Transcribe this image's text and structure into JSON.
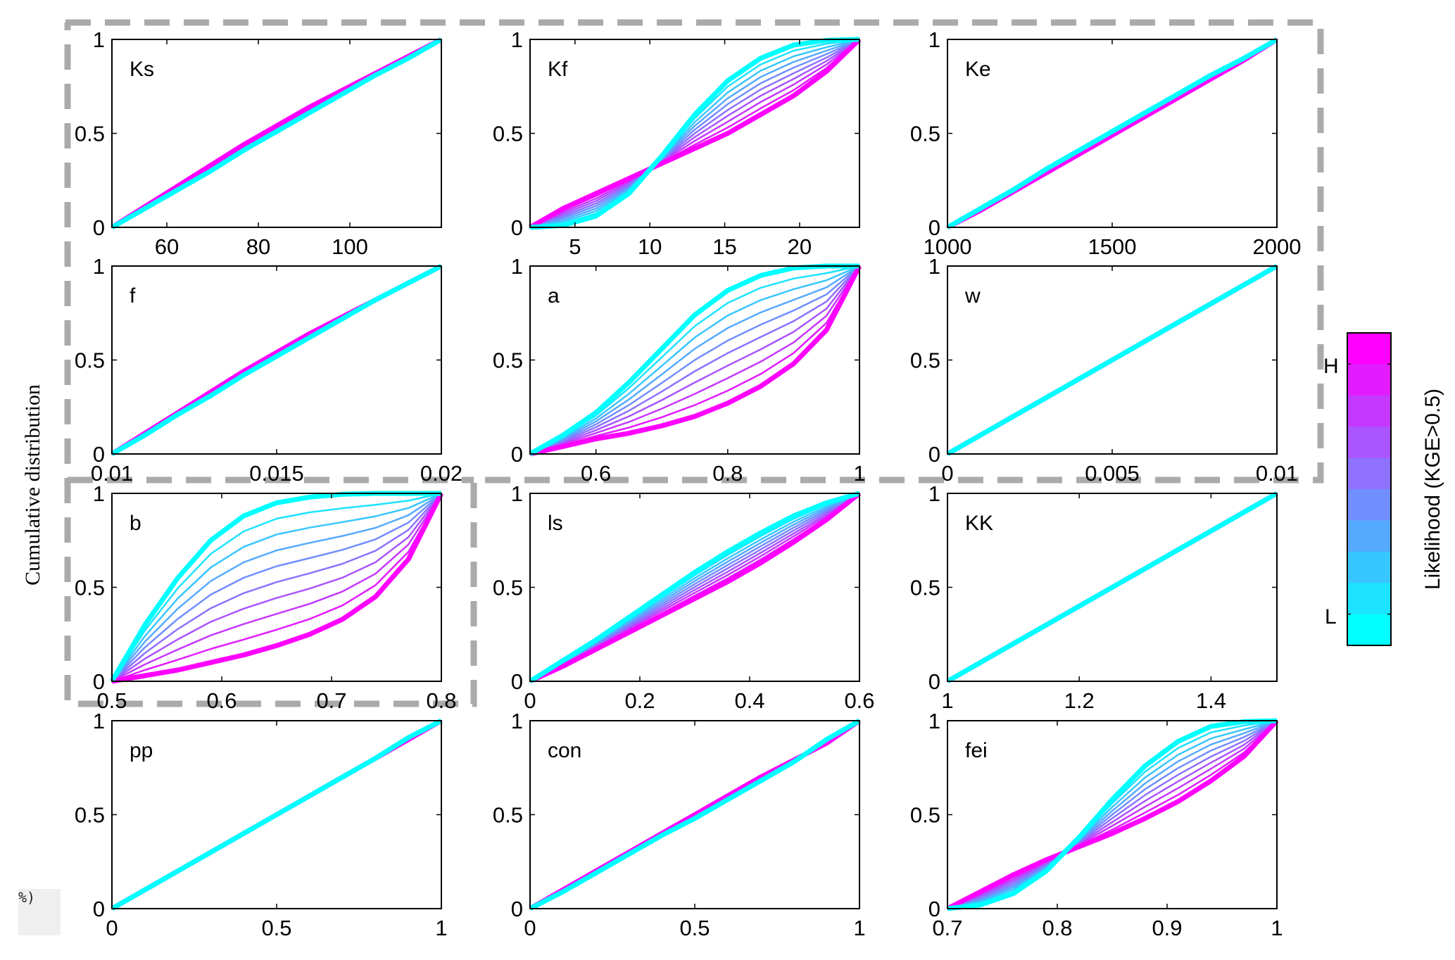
{
  "chart_data": {
    "type": "line",
    "ylabel": "Cumulative distribution",
    "colorbar": {
      "label": "Likelihood (KGE>0.5)",
      "high_label": "H",
      "low_label": "L",
      "colors_high_to_low": [
        "#ff00ff",
        "#e31cff",
        "#c638ff",
        "#aa55ff",
        "#8e71ff",
        "#718eff",
        "#55aaff",
        "#38c6ff",
        "#1ce3ff",
        "#00ffff"
      ]
    },
    "highlight_box_style": "gray-dashed",
    "panels": [
      {
        "label": "Ks",
        "xlim": [
          48,
          120
        ],
        "xticks": [
          60,
          80,
          100
        ],
        "ylim": [
          0,
          1
        ],
        "yticks": [
          0,
          0.5,
          1
        ],
        "cdf_high": [
          0,
          0.11,
          0.22,
          0.33,
          0.44,
          0.54,
          0.64,
          0.73,
          0.82,
          0.91,
          1
        ],
        "cdf_low": [
          0,
          0.1,
          0.2,
          0.3,
          0.41,
          0.51,
          0.61,
          0.71,
          0.81,
          0.9,
          1
        ]
      },
      {
        "label": "Kf",
        "xlim": [
          2,
          24
        ],
        "xticks": [
          5,
          10,
          15,
          20
        ],
        "ylim": [
          0,
          1
        ],
        "yticks": [
          0,
          0.5,
          1
        ],
        "cdf_high": [
          0,
          0.1,
          0.18,
          0.26,
          0.34,
          0.42,
          0.5,
          0.6,
          0.7,
          0.83,
          1
        ],
        "cdf_low": [
          0,
          0.01,
          0.06,
          0.18,
          0.38,
          0.6,
          0.78,
          0.9,
          0.97,
          0.995,
          1
        ]
      },
      {
        "label": "Ke",
        "xlim": [
          1000,
          2000
        ],
        "xticks": [
          1000,
          1500,
          2000
        ],
        "ylim": [
          0,
          1
        ],
        "yticks": [
          0,
          0.5,
          1
        ],
        "cdf_high": [
          0,
          0.09,
          0.19,
          0.29,
          0.39,
          0.49,
          0.59,
          0.69,
          0.79,
          0.89,
          1
        ],
        "cdf_low": [
          0,
          0.1,
          0.2,
          0.31,
          0.41,
          0.51,
          0.61,
          0.71,
          0.81,
          0.9,
          1
        ]
      },
      {
        "label": "f",
        "xlim": [
          0.01,
          0.02
        ],
        "xticks": [
          0.01,
          0.015,
          0.02
        ],
        "ylim": [
          0,
          1
        ],
        "yticks": [
          0,
          0.5,
          1
        ],
        "cdf_high": [
          0,
          0.11,
          0.22,
          0.33,
          0.44,
          0.54,
          0.64,
          0.73,
          0.82,
          0.91,
          1
        ],
        "cdf_low": [
          0,
          0.1,
          0.21,
          0.31,
          0.42,
          0.52,
          0.62,
          0.72,
          0.82,
          0.91,
          1
        ]
      },
      {
        "label": "a",
        "xlim": [
          0.5,
          1
        ],
        "xticks": [
          0.6,
          0.8,
          1
        ],
        "ylim": [
          0,
          1
        ],
        "yticks": [
          0,
          0.5,
          1
        ],
        "cdf_high": [
          0,
          0.04,
          0.08,
          0.11,
          0.15,
          0.2,
          0.27,
          0.36,
          0.48,
          0.66,
          1
        ],
        "cdf_low": [
          0,
          0.1,
          0.22,
          0.38,
          0.56,
          0.74,
          0.87,
          0.95,
          0.99,
          1,
          1
        ]
      },
      {
        "label": "w",
        "xlim": [
          0,
          0.01
        ],
        "xticks": [
          0,
          0.005,
          0.01
        ],
        "ylim": [
          0,
          1
        ],
        "yticks": [
          0,
          0.5,
          1
        ],
        "cdf_high": [
          0,
          0.1,
          0.2,
          0.3,
          0.4,
          0.5,
          0.6,
          0.7,
          0.8,
          0.9,
          1
        ],
        "cdf_low": [
          0,
          0.1,
          0.2,
          0.3,
          0.4,
          0.5,
          0.6,
          0.7,
          0.8,
          0.9,
          1
        ]
      },
      {
        "label": "b",
        "xlim": [
          0.5,
          0.8
        ],
        "xticks": [
          0.5,
          0.6,
          0.7,
          0.8
        ],
        "ylim": [
          0,
          1
        ],
        "yticks": [
          0,
          0.5,
          1
        ],
        "cdf_high": [
          0,
          0.03,
          0.06,
          0.1,
          0.14,
          0.19,
          0.25,
          0.33,
          0.45,
          0.65,
          1
        ],
        "cdf_low": [
          0,
          0.3,
          0.55,
          0.75,
          0.88,
          0.95,
          0.98,
          0.995,
          1,
          1,
          1
        ]
      },
      {
        "label": "ls",
        "xlim": [
          0,
          0.6
        ],
        "xticks": [
          0,
          0.2,
          0.4,
          0.6
        ],
        "ylim": [
          0,
          1
        ],
        "yticks": [
          0,
          0.5,
          1
        ],
        "cdf_high": [
          0,
          0.08,
          0.17,
          0.26,
          0.35,
          0.44,
          0.53,
          0.63,
          0.74,
          0.86,
          1
        ],
        "cdf_low": [
          0,
          0.11,
          0.22,
          0.34,
          0.46,
          0.58,
          0.69,
          0.79,
          0.88,
          0.95,
          1
        ]
      },
      {
        "label": "KK",
        "xlim": [
          1,
          1.5
        ],
        "xticks": [
          1,
          1.2,
          1.4
        ],
        "ylim": [
          0,
          1
        ],
        "yticks": [
          0,
          0.5,
          1
        ],
        "cdf_high": [
          0,
          0.1,
          0.2,
          0.3,
          0.4,
          0.5,
          0.6,
          0.7,
          0.8,
          0.9,
          1
        ],
        "cdf_low": [
          0,
          0.1,
          0.2,
          0.3,
          0.4,
          0.5,
          0.6,
          0.7,
          0.8,
          0.9,
          1
        ]
      },
      {
        "label": "pp",
        "xlim": [
          0,
          1
        ],
        "xticks": [
          0,
          0.5,
          1
        ],
        "ylim": [
          0,
          1
        ],
        "yticks": [
          0,
          0.5,
          1
        ],
        "cdf_high": [
          0,
          0.1,
          0.2,
          0.3,
          0.4,
          0.5,
          0.6,
          0.7,
          0.8,
          0.9,
          1
        ],
        "cdf_low": [
          0,
          0.1,
          0.2,
          0.3,
          0.4,
          0.5,
          0.6,
          0.7,
          0.8,
          0.91,
          1
        ]
      },
      {
        "label": "con",
        "xlim": [
          0,
          1
        ],
        "xticks": [
          0,
          0.5,
          1
        ],
        "ylim": [
          0,
          1
        ],
        "yticks": [
          0,
          0.5,
          1
        ],
        "cdf_high": [
          0,
          0.1,
          0.2,
          0.3,
          0.4,
          0.5,
          0.6,
          0.7,
          0.79,
          0.88,
          1
        ],
        "cdf_low": [
          0,
          0.09,
          0.19,
          0.29,
          0.39,
          0.48,
          0.58,
          0.68,
          0.78,
          0.9,
          1
        ]
      },
      {
        "label": "fei",
        "xlim": [
          0.7,
          1
        ],
        "xticks": [
          0.7,
          0.8,
          0.9,
          1
        ],
        "ylim": [
          0,
          1
        ],
        "yticks": [
          0,
          0.5,
          1
        ],
        "cdf_high": [
          0,
          0.09,
          0.18,
          0.26,
          0.33,
          0.4,
          0.48,
          0.57,
          0.68,
          0.81,
          1
        ],
        "cdf_low": [
          0,
          0.02,
          0.08,
          0.2,
          0.38,
          0.58,
          0.76,
          0.89,
          0.97,
          0.995,
          1
        ]
      }
    ]
  },
  "artifact": {
    "text": "%)"
  }
}
